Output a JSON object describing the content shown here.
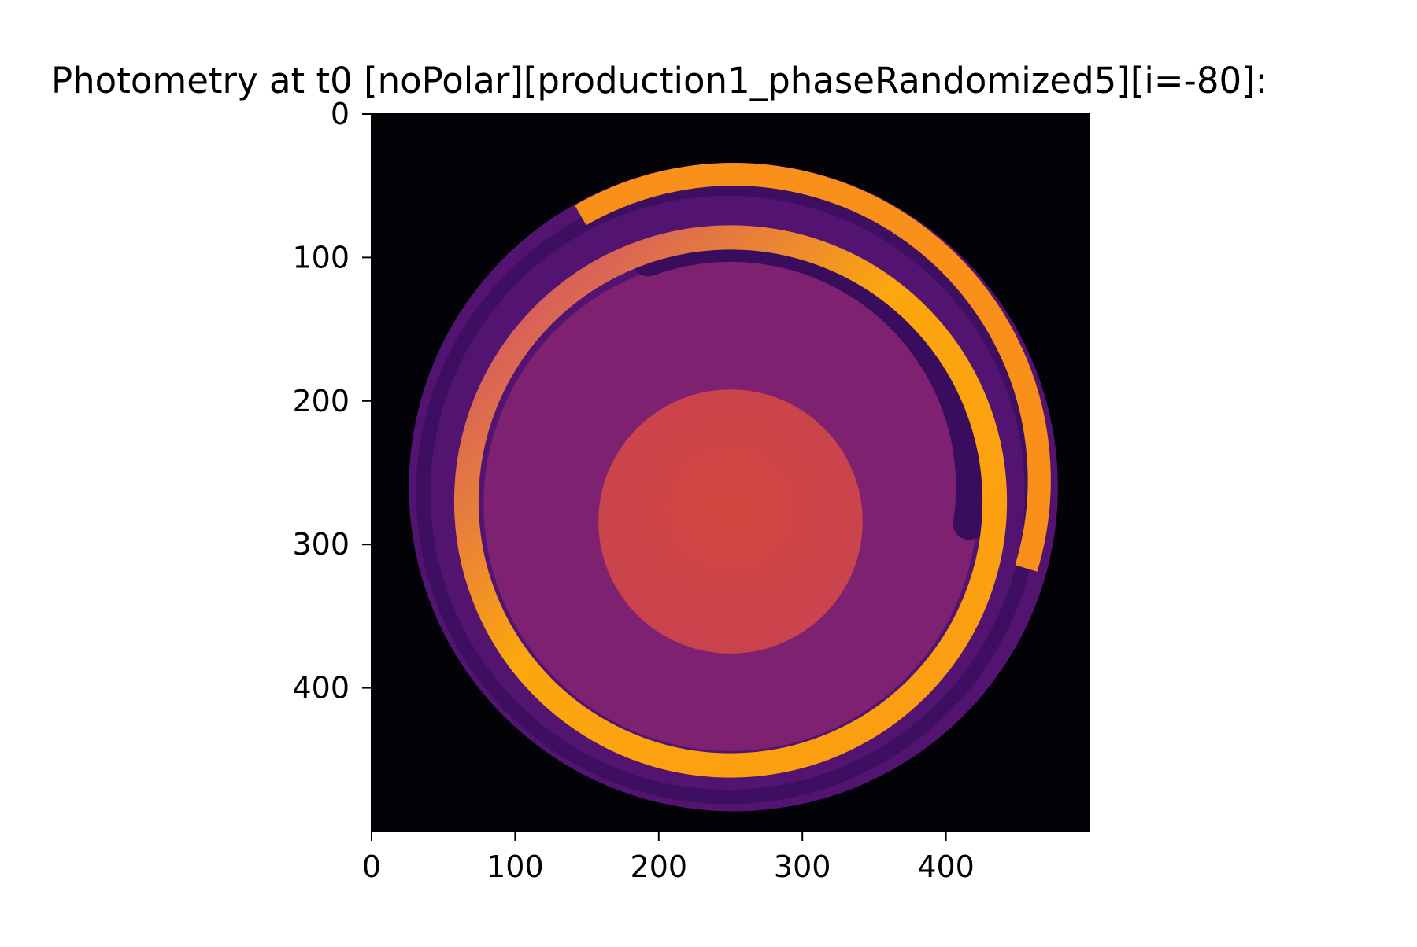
{
  "chart_data": {
    "type": "heatmap",
    "title": "Photometry at t0 [noPolar][production1_phaseRandomized5][i=-80]:",
    "xlabel": "",
    "ylabel": "",
    "xlim": [
      0,
      500
    ],
    "ylim": [
      500,
      0
    ],
    "x_ticks": [
      "0",
      "100",
      "200",
      "300",
      "400"
    ],
    "y_ticks": [
      "0",
      "100",
      "200",
      "300",
      "400"
    ],
    "colormap": "inferno",
    "grid": false,
    "image": {
      "background_color": "#030207",
      "disk": {
        "center": [
          252,
          260
        ],
        "radius": 226,
        "color": "#521470"
      },
      "outer_ring": {
        "center": [
          250,
          270
        ],
        "radius": 184,
        "width": 17,
        "colors": [
          "#fca70e",
          "#f37a1a",
          "#c8437a"
        ]
      },
      "dark_arc": {
        "center": [
          250,
          270
        ],
        "radius": 168,
        "width": 22,
        "color": "#3a0c5e"
      },
      "inner_disk": {
        "center": [
          250,
          272
        ],
        "radius": 172,
        "color": "#7e2170"
      },
      "central_spot": {
        "center": [
          250,
          284
        ],
        "radius": 92,
        "color": "#d04645"
      }
    }
  }
}
